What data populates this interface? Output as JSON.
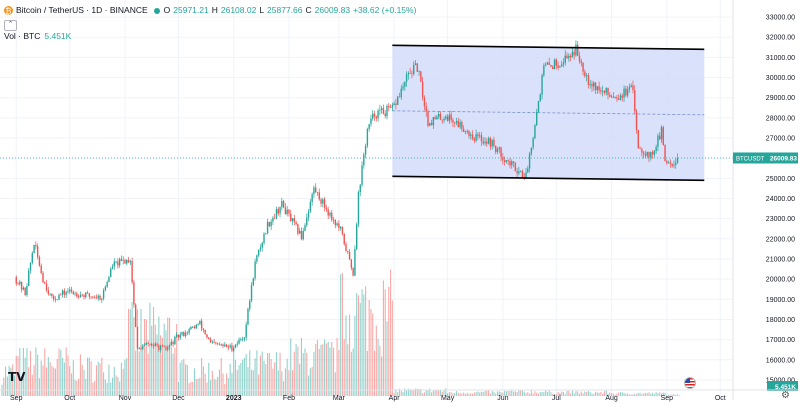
{
  "legend": {
    "symbol": "Bitcoin / TetherUS · 1D · BINANCE",
    "open_label": "O",
    "open": "25971.21",
    "high_label": "H",
    "high": "26108.02",
    "low_label": "L",
    "low": "25877.66",
    "close_label": "C",
    "close": "26009.83",
    "change": "+38.62 (+0.15%)",
    "vol_label": "Vol · BTC",
    "vol_value": "5.451K"
  },
  "colors": {
    "up": "#26a69a",
    "down": "#ef5350",
    "channel_fill": "#d2dcfa",
    "channel_line": "#000000",
    "up_volume": "#26a69a",
    "down_volume": "#ef5350"
  },
  "price_tag": {
    "label": "BTCUSDT",
    "value": "26009.83"
  },
  "volume_tag": "5.451K",
  "chart_data": {
    "type": "candlestick",
    "title": "Bitcoin / TetherUS · 1D · BINANCE",
    "ylim": [
      14500,
      33400
    ],
    "y_ticks": [
      "33000.00",
      "32000.00",
      "31000.00",
      "30000.00",
      "29000.00",
      "28000.00",
      "27000.00",
      "26000.00",
      "25000.00",
      "24000.00",
      "23000.00",
      "22000.00",
      "21000.00",
      "20000.00",
      "19000.00",
      "18000.00",
      "17000.00",
      "16000.00",
      "15000.00"
    ],
    "x_ticks": [
      "Sep",
      "Oct",
      "Nov",
      "Dec",
      "2023",
      "Feb",
      "Mar",
      "Apr",
      "May",
      "Jun",
      "Jul",
      "Aug",
      "Sep",
      "Oct"
    ],
    "x_tick_dates": [
      "2022-09-01",
      "2022-10-01",
      "2022-11-01",
      "2022-12-01",
      "2023-01-01",
      "2023-02-01",
      "2023-03-01",
      "2023-04-01",
      "2023-05-01",
      "2023-06-01",
      "2023-07-01",
      "2023-08-01",
      "2023-09-01",
      "2023-10-01"
    ],
    "last_price": 26009.83,
    "close_series": [
      [
        "2022-09-01",
        20100
      ],
      [
        "2022-09-07",
        19300
      ],
      [
        "2022-09-12",
        21800
      ],
      [
        "2022-09-17",
        20000
      ],
      [
        "2022-09-22",
        19000
      ],
      [
        "2022-10-01",
        19400
      ],
      [
        "2022-10-10",
        19200
      ],
      [
        "2022-10-20",
        19100
      ],
      [
        "2022-10-26",
        20700
      ],
      [
        "2022-11-05",
        21000
      ],
      [
        "2022-11-09",
        16500
      ],
      [
        "2022-11-15",
        16800
      ],
      [
        "2022-11-25",
        16500
      ],
      [
        "2022-12-01",
        17100
      ],
      [
        "2022-12-14",
        17800
      ],
      [
        "2022-12-20",
        16800
      ],
      [
        "2023-01-01",
        16600
      ],
      [
        "2023-01-08",
        17200
      ],
      [
        "2023-01-14",
        20800
      ],
      [
        "2023-01-21",
        22700
      ],
      [
        "2023-01-29",
        23700
      ],
      [
        "2023-02-09",
        22100
      ],
      [
        "2023-02-16",
        24500
      ],
      [
        "2023-02-25",
        23200
      ],
      [
        "2023-03-03",
        22400
      ],
      [
        "2023-03-10",
        20300
      ],
      [
        "2023-03-13",
        24200
      ],
      [
        "2023-03-18",
        27400
      ],
      [
        "2023-03-22",
        28200
      ],
      [
        "2023-04-01",
        28400
      ],
      [
        "2023-04-11",
        30300
      ],
      [
        "2023-04-15",
        30500
      ],
      [
        "2023-04-21",
        27800
      ],
      [
        "2023-05-01",
        28100
      ],
      [
        "2023-05-10",
        27600
      ],
      [
        "2023-05-16",
        27100
      ],
      [
        "2023-05-26",
        26800
      ],
      [
        "2023-06-05",
        25800
      ],
      [
        "2023-06-15",
        25100
      ],
      [
        "2023-06-21",
        28300
      ],
      [
        "2023-06-25",
        30500
      ],
      [
        "2023-07-05",
        30800
      ],
      [
        "2023-07-13",
        31400
      ],
      [
        "2023-07-20",
        29900
      ],
      [
        "2023-07-27",
        29300
      ],
      [
        "2023-08-05",
        29100
      ],
      [
        "2023-08-14",
        29400
      ],
      [
        "2023-08-17",
        26600
      ],
      [
        "2023-08-24",
        26100
      ],
      [
        "2023-08-30",
        27300
      ],
      [
        "2023-09-01",
        25900
      ],
      [
        "2023-09-05",
        25800
      ],
      [
        "2023-09-08",
        26009.83
      ]
    ],
    "volume_series_btc_k": [
      [
        "2022-09",
        280
      ],
      [
        "2022-10",
        230
      ],
      [
        "2022-11",
        520
      ],
      [
        "2022-12",
        210
      ],
      [
        "2023-01",
        260
      ],
      [
        "2023-02",
        330
      ],
      [
        "2023-03",
        700
      ],
      [
        "2023-04",
        45
      ],
      [
        "2023-05",
        30
      ],
      [
        "2023-06",
        35
      ],
      [
        "2023-07",
        30
      ],
      [
        "2023-08",
        22
      ],
      [
        "2023-09",
        9
      ]
    ],
    "annotations": [
      {
        "type": "parallel-channel",
        "upper": [
          [
            "2023-03-31",
            31600
          ],
          [
            "2023-09-22",
            31400
          ]
        ],
        "lower": [
          [
            "2023-03-31",
            25100
          ],
          [
            "2023-09-22",
            24900
          ]
        ],
        "midline": [
          [
            "2023-03-31",
            28350
          ],
          [
            "2023-09-22",
            28150
          ]
        ]
      },
      {
        "type": "horizontal-line",
        "value": 26009.83,
        "style": "dotted"
      }
    ]
  }
}
